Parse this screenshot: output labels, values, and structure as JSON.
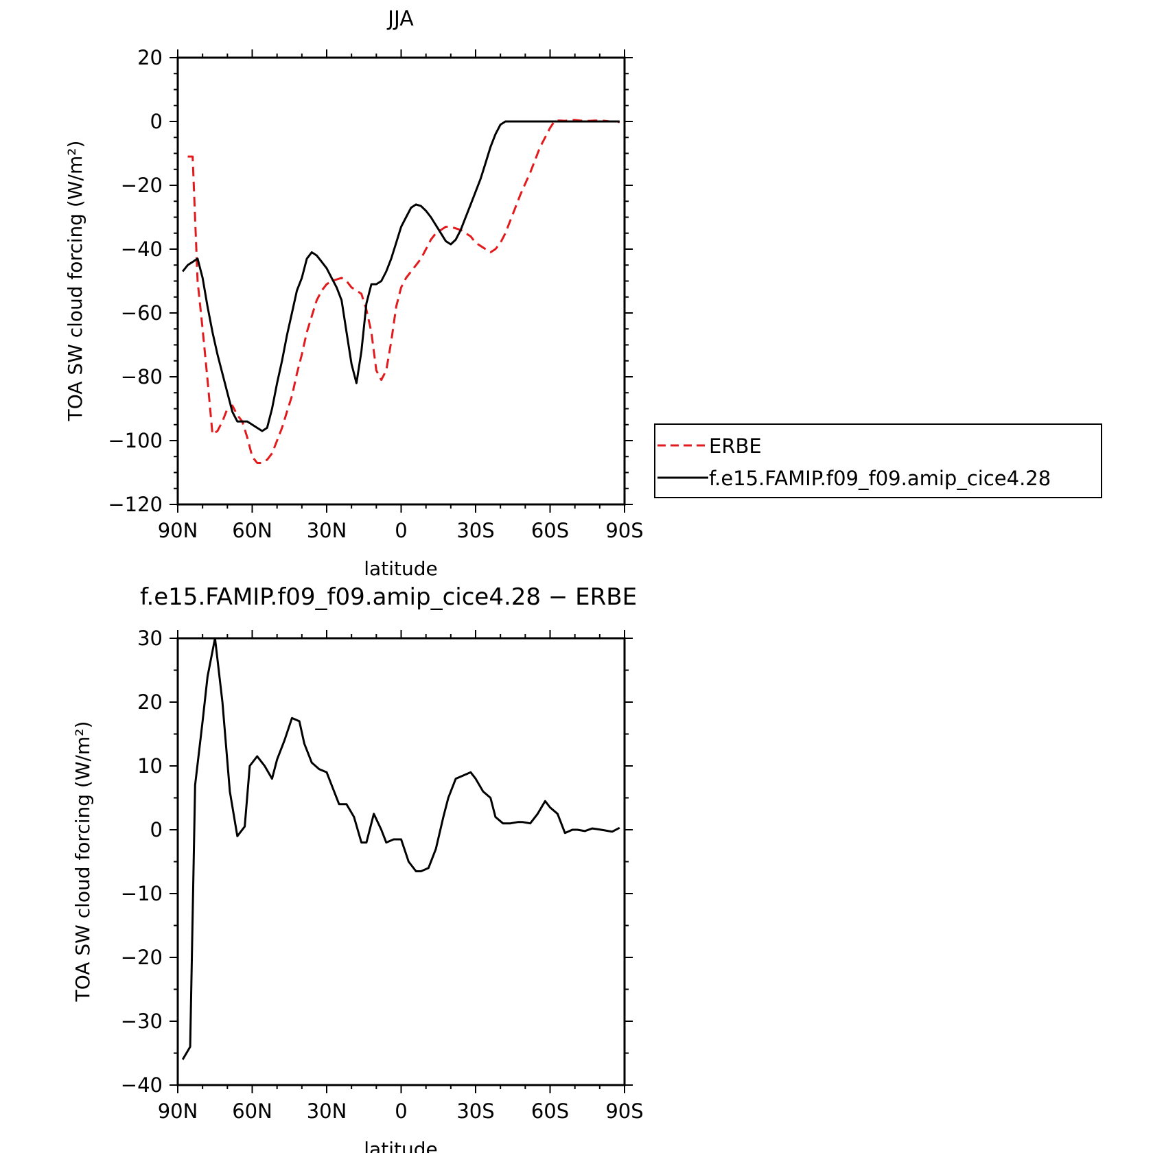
{
  "chart_data": [
    {
      "type": "line",
      "title": "JJA",
      "xlabel": "latitude",
      "ylabel": "TOA SW cloud forcing (W/m²)",
      "xlim": [
        90,
        -90
      ],
      "ylim": [
        -120,
        20
      ],
      "xticks": [
        90,
        60,
        30,
        0,
        -30,
        -60,
        -90
      ],
      "xtick_labels": [
        "90N",
        "60N",
        "30N",
        "0",
        "30S",
        "60S",
        "90S"
      ],
      "yticks": [
        20,
        0,
        -20,
        -40,
        -60,
        -80,
        -100,
        -120
      ],
      "ytick_labels": [
        "20",
        "0",
        "−20",
        "−40",
        "−60",
        "−80",
        "−100",
        "−120"
      ],
      "legend": {
        "placement": "right-outside"
      },
      "series": [
        {
          "name": "ERBE",
          "color": "#e31a1c",
          "dash": "dashed",
          "x": [
            86,
            84,
            82,
            80,
            78,
            76,
            74,
            72,
            70,
            68,
            66,
            64,
            62,
            60,
            58,
            56,
            54,
            52,
            50,
            48,
            46,
            44,
            42,
            40,
            38,
            36,
            34,
            32,
            30,
            28,
            26,
            24,
            22,
            20,
            18,
            16,
            14,
            12,
            10,
            8,
            6,
            4,
            2,
            0,
            -2,
            -4,
            -6,
            -8,
            -10,
            -12,
            -14,
            -16,
            -18,
            -20,
            -22,
            -24,
            -26,
            -28,
            -30,
            -32,
            -34,
            -36,
            -38,
            -40,
            -42,
            -44,
            -46,
            -48,
            -50,
            -52,
            -54,
            -56,
            -58,
            -60,
            -62,
            -64,
            -66,
            -68,
            -70,
            -72,
            -74,
            -76,
            -78,
            -80,
            -82,
            -84,
            -86,
            -88
          ],
          "y": [
            -11,
            -11,
            -50,
            -65,
            -81,
            -98,
            -97,
            -94,
            -90,
            -89,
            -92,
            -94,
            -99,
            -105,
            -107,
            -107,
            -106,
            -104,
            -100,
            -96,
            -91,
            -86,
            -79,
            -73,
            -66,
            -61,
            -56,
            -53,
            -51,
            -50,
            -49.5,
            -49,
            -50,
            -52,
            -53,
            -54,
            -59,
            -66,
            -78,
            -81,
            -78,
            -69,
            -58,
            -52,
            -49,
            -47,
            -45,
            -43,
            -40,
            -37,
            -35,
            -34,
            -33,
            -33,
            -33.5,
            -34,
            -35,
            -36,
            -38,
            -39,
            -40,
            -41,
            -40,
            -38,
            -35,
            -31,
            -27,
            -23,
            -19.5,
            -16,
            -12,
            -8,
            -5,
            -2,
            0,
            0,
            0,
            0,
            0,
            0,
            0,
            0,
            0,
            0,
            0,
            0,
            0,
            0
          ],
          "y_display": [
            -11,
            -11,
            -50,
            -65,
            -81,
            -98,
            -97,
            -94,
            -90,
            -89,
            -92,
            -94,
            -99,
            -105,
            -107,
            -107,
            -106,
            -104,
            -100,
            -96,
            -91,
            -86,
            -79,
            -73,
            -66,
            -61,
            -56,
            -53,
            -51,
            -50,
            -49.5,
            -49,
            -50,
            -52,
            -53,
            -54,
            -59,
            -66,
            -78,
            -81,
            -78,
            -69,
            -58,
            -52,
            -49,
            -47,
            -45,
            -43,
            -40,
            -37,
            -35,
            -34,
            -33,
            -33,
            -33.5,
            -34,
            -35,
            -36,
            -38,
            -39,
            -40,
            -41,
            -40,
            -38,
            -35,
            -31,
            -27,
            -23,
            -19.5,
            -16,
            -12,
            -8,
            -5,
            -2,
            0.3,
            0.3,
            0.2,
            0.4,
            0.5,
            0.3,
            0.2,
            0.2,
            0.3,
            0.3,
            0.2,
            0,
            0,
            -0.2
          ]
        },
        {
          "name": "f.e15.FAMIP.f09_f09.amip_cice4.28",
          "color": "#000000",
          "dash": "solid",
          "x": [
            88,
            86,
            84,
            82,
            80,
            78,
            76,
            74,
            72,
            70,
            68,
            66,
            64,
            62,
            60,
            58,
            56,
            54,
            52,
            50,
            48,
            46,
            44,
            42,
            40,
            38,
            36,
            34,
            32,
            30,
            28,
            26,
            24,
            22,
            20,
            18,
            16,
            14,
            12,
            10,
            8,
            6,
            4,
            2,
            0,
            -2,
            -4,
            -6,
            -8,
            -10,
            -12,
            -14,
            -16,
            -18,
            -20,
            -22,
            -24,
            -26,
            -28,
            -30,
            -32,
            -34,
            -36,
            -38,
            -40,
            -42,
            -44,
            -46,
            -48,
            -50,
            -52,
            -54,
            -56,
            -58,
            -60,
            -62,
            -64,
            -66,
            -68,
            -70,
            -72,
            -74,
            -76,
            -78,
            -80,
            -82,
            -84,
            -86,
            -88
          ],
          "y": [
            -47,
            -45,
            -44,
            -43,
            -49,
            -58,
            -66,
            -73,
            -79,
            -85,
            -91,
            -94,
            -94,
            -94,
            -95,
            -96,
            -97,
            -96,
            -90,
            -82,
            -75,
            -67,
            -60,
            -53,
            -49,
            -43,
            -41,
            -42,
            -44,
            -46,
            -49,
            -52,
            -56,
            -66,
            -76,
            -82,
            -72,
            -57,
            -51,
            -51,
            -50,
            -47,
            -43,
            -38,
            -33,
            -30,
            -27,
            -26,
            -26.5,
            -28,
            -30,
            -32.5,
            -35,
            -37.5,
            -38.5,
            -37,
            -34,
            -30,
            -26,
            -22,
            -18,
            -13,
            -8,
            -4,
            -1,
            0,
            0,
            0,
            0,
            0,
            0,
            0,
            0,
            0,
            0,
            0,
            0,
            0,
            0,
            0,
            0,
            0,
            0,
            0,
            0,
            0,
            0,
            0,
            0
          ]
        }
      ]
    },
    {
      "type": "line",
      "title": "f.e15.FAMIP.f09_f09.amip_cice4.28 − ERBE",
      "xlabel": "latitude",
      "ylabel": "TOA SW cloud forcing (W/m²)",
      "xlim": [
        90,
        -90
      ],
      "ylim": [
        -40,
        30
      ],
      "xticks": [
        90,
        60,
        30,
        0,
        -30,
        -60,
        -90
      ],
      "xtick_labels": [
        "90N",
        "60N",
        "30N",
        "0",
        "30S",
        "60S",
        "90S"
      ],
      "yticks": [
        30,
        20,
        10,
        0,
        -10,
        -20,
        -30,
        -40
      ],
      "ytick_labels": [
        "30",
        "20",
        "10",
        "0",
        "−10",
        "−20",
        "−30",
        "−40"
      ],
      "series": [
        {
          "color": "#000000",
          "dash": "solid",
          "x": [
            88,
            85,
            83,
            80,
            78,
            75,
            72,
            69,
            66,
            63,
            61,
            58,
            55,
            52,
            50,
            47,
            44,
            41,
            39,
            36,
            33,
            30,
            28,
            25,
            22,
            19,
            16,
            14,
            11,
            8,
            6,
            3,
            0,
            -3,
            -6,
            -8,
            -11,
            -14,
            -17,
            -19,
            -22,
            -25,
            -28,
            -30,
            -33,
            -36,
            -38,
            -41,
            -44,
            -47,
            -49,
            -52,
            -55,
            -58,
            -60,
            -63,
            -66,
            -69,
            -71,
            -74,
            -77,
            -79,
            -82,
            -85,
            -88
          ],
          "y": [
            -36,
            -34,
            7,
            17,
            24,
            30,
            20,
            6,
            -1,
            0.5,
            10,
            11.5,
            10,
            8,
            11,
            14,
            17.5,
            17,
            13.5,
            10.5,
            9.5,
            9,
            7,
            4,
            4,
            2,
            -2,
            -2,
            2.5,
            0,
            -2,
            -1.5,
            -1.5,
            -5,
            -6.5,
            -6.5,
            -6,
            -3,
            2,
            5,
            8,
            8.5,
            9,
            8,
            6,
            5,
            2,
            1,
            1,
            1.2,
            1.2,
            1,
            2.5,
            4.5,
            3.5,
            2.5,
            -0.5,
            0,
            0,
            -0.2,
            0.2,
            0.1,
            -0.1,
            -0.3,
            0.3
          ]
        }
      ]
    }
  ]
}
